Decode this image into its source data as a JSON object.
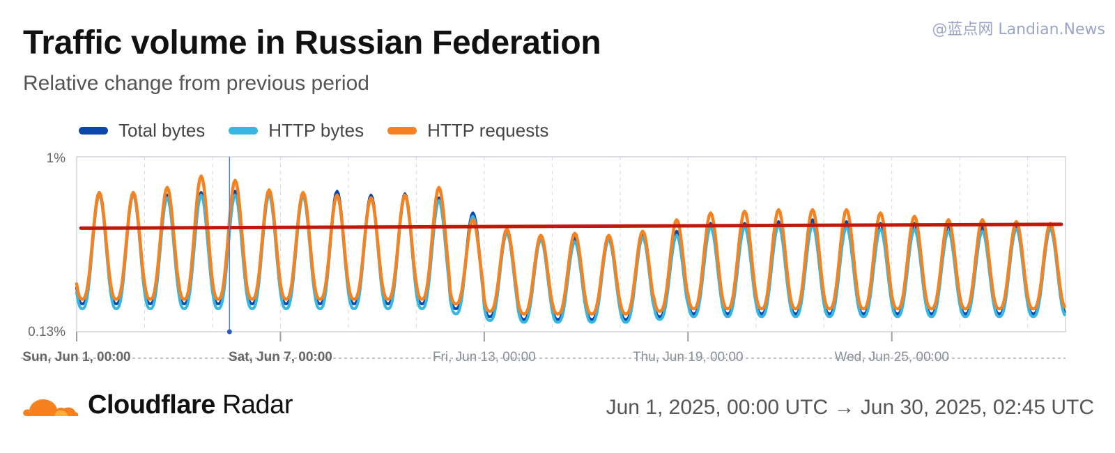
{
  "watermark": "@蓝点网 Landian.News",
  "header": {
    "title": "Traffic volume in Russian Federation",
    "subtitle": "Relative change from previous period"
  },
  "legend": [
    {
      "label": "Total bytes",
      "color": "#0a47a9"
    },
    {
      "label": "HTTP bytes",
      "color": "#36b6e0"
    },
    {
      "label": "HTTP requests",
      "color": "#f6821f"
    }
  ],
  "footer": {
    "brand_bold": "Cloudflare",
    "brand_light": "Radar",
    "brand_icon": "cloudflare-cloud-icon",
    "date_range": "Jun 1, 2025, 00:00 UTC → Jun 30, 2025, 02:45 UTC"
  },
  "chart_data": {
    "type": "line",
    "y_scale": "log",
    "ylim": [
      0.13,
      1
    ],
    "y_ticks": [
      "0.13%",
      "1%"
    ],
    "x_range_hours": [
      0,
      698.75
    ],
    "x_ticks": [
      {
        "label": "Sun, Jun 1, 00:00",
        "hour": 0,
        "bold": true
      },
      {
        "label": "Sat, Jun 7, 00:00",
        "hour": 144,
        "bold": true
      },
      {
        "label": "Fri, Jun 13, 00:00",
        "hour": 288,
        "bold": false
      },
      {
        "label": "Thu, Jun 19, 00:00",
        "hour": 432,
        "bold": false
      },
      {
        "label": "Wed, Jun 25, 00:00",
        "hour": 576,
        "bold": false
      }
    ],
    "grid": true,
    "crosshair_hour": 108,
    "legend_position": "top-left",
    "daily_peak_values": {
      "days": [
        "Jun 1",
        "Jun 2",
        "Jun 3",
        "Jun 4",
        "Jun 5",
        "Jun 6",
        "Jun 7",
        "Jun 8",
        "Jun 9",
        "Jun 10",
        "Jun 11",
        "Jun 12",
        "Jun 13",
        "Jun 14",
        "Jun 15",
        "Jun 16",
        "Jun 17",
        "Jun 18",
        "Jun 19",
        "Jun 20",
        "Jun 21",
        "Jun 22",
        "Jun 23",
        "Jun 24",
        "Jun 25",
        "Jun 26",
        "Jun 27",
        "Jun 28",
        "Jun 29",
        "Jun 30"
      ],
      "series": [
        {
          "name": "Total bytes",
          "values": [
            0.66,
            0.66,
            0.64,
            0.66,
            0.67,
            0.67,
            0.65,
            0.67,
            0.64,
            0.65,
            0.62,
            0.52,
            0.43,
            0.4,
            0.39,
            0.4,
            0.41,
            0.42,
            0.46,
            0.46,
            0.47,
            0.48,
            0.47,
            0.46,
            0.46,
            0.45,
            0.44,
            0.45,
            0.45,
            0.44
          ]
        },
        {
          "name": "HTTP bytes",
          "values": [
            0.64,
            0.64,
            0.62,
            0.64,
            0.64,
            0.64,
            0.63,
            0.64,
            0.62,
            0.63,
            0.6,
            0.5,
            0.41,
            0.38,
            0.37,
            0.38,
            0.39,
            0.4,
            0.44,
            0.44,
            0.45,
            0.45,
            0.44,
            0.43,
            0.43,
            0.42,
            0.42,
            0.43,
            0.43,
            0.42
          ]
        },
        {
          "name": "HTTP requests",
          "values": [
            0.66,
            0.66,
            0.7,
            0.8,
            0.76,
            0.68,
            0.66,
            0.64,
            0.62,
            0.64,
            0.7,
            0.48,
            0.43,
            0.4,
            0.41,
            0.4,
            0.42,
            0.48,
            0.52,
            0.53,
            0.54,
            0.54,
            0.54,
            0.52,
            0.5,
            0.48,
            0.48,
            0.47,
            0.46,
            0.45
          ]
        }
      ]
    },
    "daily_trough_values": {
      "series": [
        {
          "name": "Total bytes",
          "values": [
            0.18,
            0.18,
            0.18,
            0.18,
            0.18,
            0.18,
            0.18,
            0.18,
            0.18,
            0.18,
            0.18,
            0.17,
            0.155,
            0.15,
            0.15,
            0.15,
            0.15,
            0.155,
            0.16,
            0.16,
            0.16,
            0.16,
            0.16,
            0.16,
            0.16,
            0.16,
            0.16,
            0.16,
            0.16,
            0.16
          ]
        },
        {
          "name": "HTTP bytes",
          "values": [
            0.17,
            0.17,
            0.17,
            0.17,
            0.17,
            0.17,
            0.17,
            0.17,
            0.17,
            0.17,
            0.17,
            0.16,
            0.148,
            0.145,
            0.145,
            0.145,
            0.145,
            0.15,
            0.155,
            0.155,
            0.155,
            0.155,
            0.155,
            0.155,
            0.155,
            0.155,
            0.155,
            0.155,
            0.155,
            0.155
          ]
        },
        {
          "name": "HTTP requests",
          "values": [
            0.19,
            0.19,
            0.19,
            0.19,
            0.19,
            0.19,
            0.19,
            0.19,
            0.19,
            0.19,
            0.19,
            0.18,
            0.165,
            0.16,
            0.16,
            0.16,
            0.16,
            0.165,
            0.17,
            0.17,
            0.17,
            0.17,
            0.17,
            0.17,
            0.17,
            0.17,
            0.17,
            0.17,
            0.17,
            0.17
          ]
        }
      ]
    },
    "trend_line": {
      "color": "#c0190a",
      "start_value": 0.435,
      "end_value": 0.455
    }
  }
}
